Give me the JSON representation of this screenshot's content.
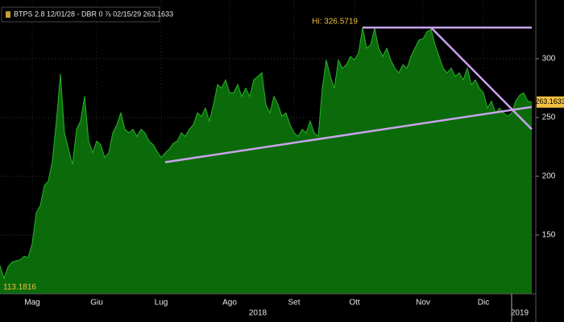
{
  "chart_data": {
    "type": "area",
    "title": "BTPS 2.8 12/01/28 - DBR 0 ⅞ 02/15/29 263.1633",
    "x": [
      0,
      1,
      2,
      3,
      4,
      5,
      6,
      7,
      8,
      9,
      10,
      11,
      12,
      13,
      14,
      15,
      16,
      17,
      18,
      19,
      20,
      21,
      22,
      23,
      24,
      25,
      26,
      27,
      28,
      29,
      30,
      31,
      32,
      33,
      34,
      35,
      36,
      37,
      38,
      39,
      40,
      41,
      42,
      43,
      44,
      45,
      46,
      47,
      48,
      49,
      50,
      51,
      52,
      53,
      54,
      55,
      56,
      57,
      58,
      59,
      60,
      61,
      62,
      63,
      64,
      65,
      66,
      67,
      68,
      69,
      70,
      71,
      72,
      73,
      74,
      75,
      76,
      77,
      78,
      79,
      80,
      81,
      82,
      83,
      84,
      85,
      86,
      87,
      88,
      89,
      90,
      91,
      92,
      93,
      94,
      95,
      96,
      97,
      98,
      99,
      100,
      101,
      102,
      103,
      104,
      105,
      106,
      107,
      108,
      109,
      110,
      111,
      112,
      113,
      114,
      115,
      116,
      117,
      118,
      119,
      120,
      121,
      122,
      123,
      124,
      125,
      126,
      127,
      128,
      129,
      130,
      131,
      132
    ],
    "series": [
      {
        "color": "#0b6b0b",
        "line_color": "#27b327",
        "values": [
          124,
          113.1816,
          123,
          127,
          128,
          129,
          132,
          131,
          143,
          169,
          175,
          192,
          196,
          213,
          247,
          287,
          237,
          223,
          210,
          240,
          247,
          268,
          230,
          220,
          230,
          227,
          216,
          220,
          237,
          244,
          254,
          240,
          237,
          240,
          234,
          240,
          237,
          230,
          227,
          221,
          216,
          220,
          223,
          228,
          230,
          237,
          234,
          240,
          244,
          254,
          251,
          258,
          247,
          261,
          278,
          275,
          282,
          271,
          271,
          278,
          268,
          275,
          268,
          282,
          285,
          288,
          261,
          254,
          268,
          261,
          251,
          254,
          244,
          237,
          234,
          240,
          237,
          247,
          237,
          234,
          275,
          299,
          285,
          275,
          299,
          292,
          295,
          302,
          299,
          305,
          326.5719,
          309,
          312,
          326,
          309,
          302,
          309,
          299,
          292,
          288,
          295,
          292,
          302,
          309,
          316,
          317,
          323,
          325,
          312,
          302,
          292,
          288,
          292,
          285,
          288,
          282,
          292,
          278,
          282,
          275,
          271,
          258,
          264,
          254,
          258,
          254,
          251,
          254,
          264,
          269,
          271,
          264,
          263.1633
        ]
      }
    ],
    "xlim": [
      0,
      133
    ],
    "ylim": [
      100,
      350
    ],
    "yticks": [
      150,
      200,
      250,
      300
    ],
    "xticks": [
      {
        "value": 8,
        "label": "Mag"
      },
      {
        "value": 24,
        "label": "Giu"
      },
      {
        "value": 40,
        "label": "Lug"
      },
      {
        "value": 57,
        "label": "Ago"
      },
      {
        "value": 73,
        "label": "Set"
      },
      {
        "value": 88,
        "label": "Ott"
      },
      {
        "value": 105,
        "label": "Nov"
      },
      {
        "value": 120,
        "label": "Dic"
      }
    ],
    "year_ticks": [
      {
        "value": 64,
        "label": "2018"
      },
      {
        "value": 129,
        "label": "2019"
      }
    ],
    "trendlines": [
      {
        "color": "#c9a3ec",
        "x": [
          90,
          132
        ],
        "values": [
          326.5719,
          326.5719
        ]
      },
      {
        "color": "#c9a3ec",
        "x": [
          107,
          132
        ],
        "values": [
          326.5719,
          240
        ]
      },
      {
        "color": "#c9a3ec",
        "x": [
          41,
          132
        ],
        "values": [
          212,
          259
        ]
      }
    ],
    "high_label": "Hi: 326.5719",
    "low_label": "113.1816",
    "last_label": "263.1633",
    "grid": true
  }
}
